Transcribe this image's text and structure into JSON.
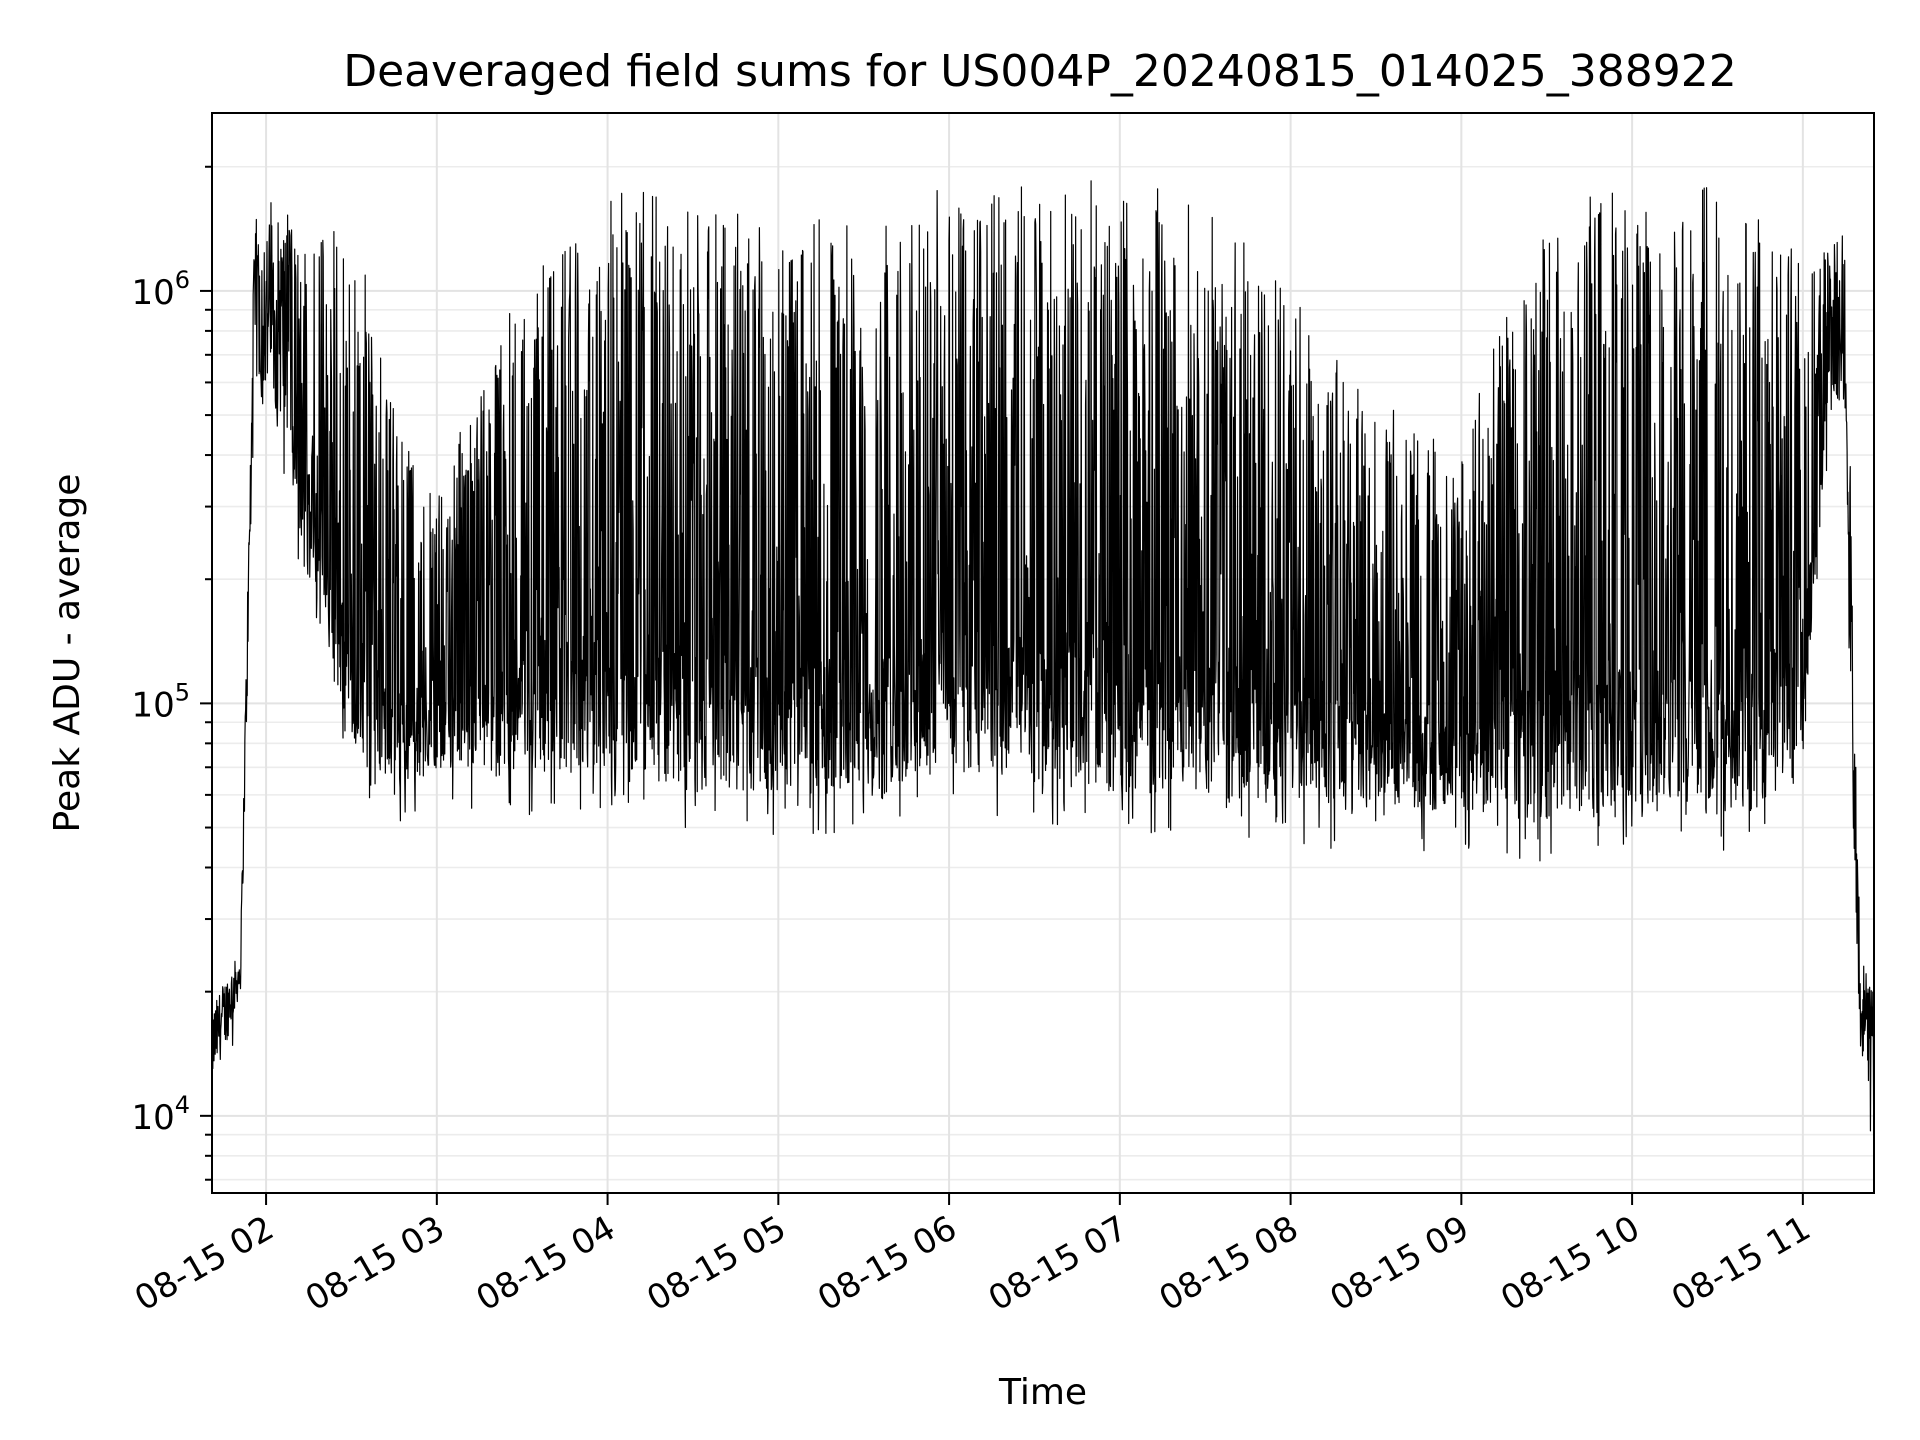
{
  "chart_data": {
    "type": "line",
    "title": "Deaveraged field sums for US004P_20240815_014025_388922",
    "xlabel": "Time",
    "ylabel": "Peak ADU - average",
    "y_scale": "log",
    "ylim": [
      6500,
      2700000
    ],
    "xlim": [
      "08-15 01:41",
      "08-15 11:25"
    ],
    "x_ticks": [
      "08-15 02",
      "08-15 03",
      "08-15 04",
      "08-15 05",
      "08-15 06",
      "08-15 07",
      "08-15 08",
      "08-15 09",
      "08-15 10",
      "08-15 11"
    ],
    "y_ticks": [
      10000,
      100000,
      1000000
    ],
    "grid": true,
    "legend": "none",
    "series_color": "#000000",
    "envelope": {
      "time": [
        "08-15 01:41",
        "08-15 01:46",
        "08-15 01:51",
        "08-15 01:56",
        "08-15 02:05",
        "08-15 02:15",
        "08-15 02:25",
        "08-15 02:35",
        "08-15 02:45",
        "08-15 03:00",
        "08-15 03:30",
        "08-15 04:00",
        "08-15 04:30",
        "08-15 05:00",
        "08-15 05:30",
        "08-15 06:00",
        "08-15 06:30",
        "08-15 07:00",
        "08-15 07:30",
        "08-15 08:00",
        "08-15 08:30",
        "08-15 09:00",
        "08-15 09:30",
        "08-15 10:00",
        "08-15 10:30",
        "08-15 10:45",
        "08-15 11:00",
        "08-15 11:10",
        "08-15 11:15",
        "08-15 11:18",
        "08-15 11:20",
        "08-15 11:25"
      ],
      "lower": [
        12000,
        15000,
        20000,
        600000,
        500000,
        200000,
        100000,
        70000,
        60000,
        70000,
        65000,
        70000,
        60000,
        60000,
        60000,
        70000,
        65000,
        60000,
        60000,
        55000,
        55000,
        55000,
        52000,
        52000,
        52000,
        55000,
        80000,
        500000,
        550000,
        30000,
        15000,
        10000
      ],
      "upper": [
        18000,
        22000,
        25000,
        1500000,
        1500000,
        1400000,
        1300000,
        1000000,
        500000,
        300000,
        1000000,
        1600000,
        1600000,
        1200000,
        1500000,
        1600000,
        1650000,
        1650000,
        1500000,
        900000,
        500000,
        400000,
        1500000,
        1600000,
        1650000,
        1600000,
        1200000,
        1300000,
        1500000,
        100000,
        25000,
        20000
      ]
    }
  }
}
